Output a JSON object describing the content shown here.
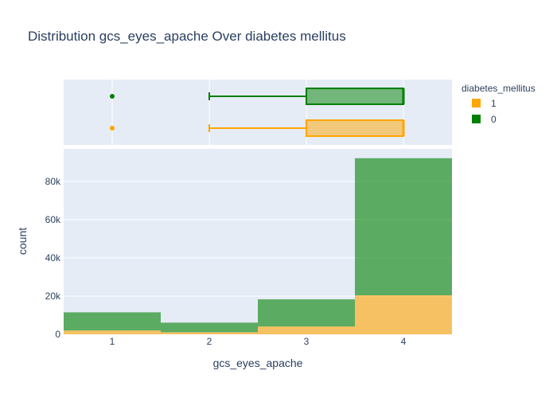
{
  "chart_data": {
    "type": "histogram",
    "title": "Distribution gcs_eyes_apache Over diabetes mellitus",
    "xlabel": "gcs_eyes_apache",
    "ylabel": "count",
    "xlim": [
      0.5,
      4.5
    ],
    "ylim": [
      0,
      97000
    ],
    "x_ticks": [
      "1",
      "2",
      "3",
      "4"
    ],
    "y_ticks": [
      "0",
      "20k",
      "40k",
      "60k",
      "80k"
    ],
    "barmode": "stacked",
    "bins": [
      1,
      2,
      3,
      4
    ],
    "series": [
      {
        "name": "1",
        "color": "#FFA500",
        "values": [
          2000,
          1100,
          4100,
          20400
        ]
      },
      {
        "name": "0",
        "color": "#008000",
        "values": [
          9500,
          5000,
          14200,
          71700
        ]
      }
    ],
    "boxplots": [
      {
        "name": "0",
        "color": "#008000",
        "outliers": [
          1
        ],
        "whisker_low": 2,
        "q1": 3,
        "median": 4,
        "q3": 4,
        "whisker_high": 4
      },
      {
        "name": "1",
        "color": "#FFA500",
        "outliers": [
          1
        ],
        "whisker_low": 2,
        "q1": 3,
        "median": 4,
        "q3": 4,
        "whisker_high": 4
      }
    ],
    "legend": {
      "title": "diabetes_mellitus",
      "position": "top-right",
      "entries": [
        "1",
        "0"
      ]
    },
    "grid": true
  }
}
